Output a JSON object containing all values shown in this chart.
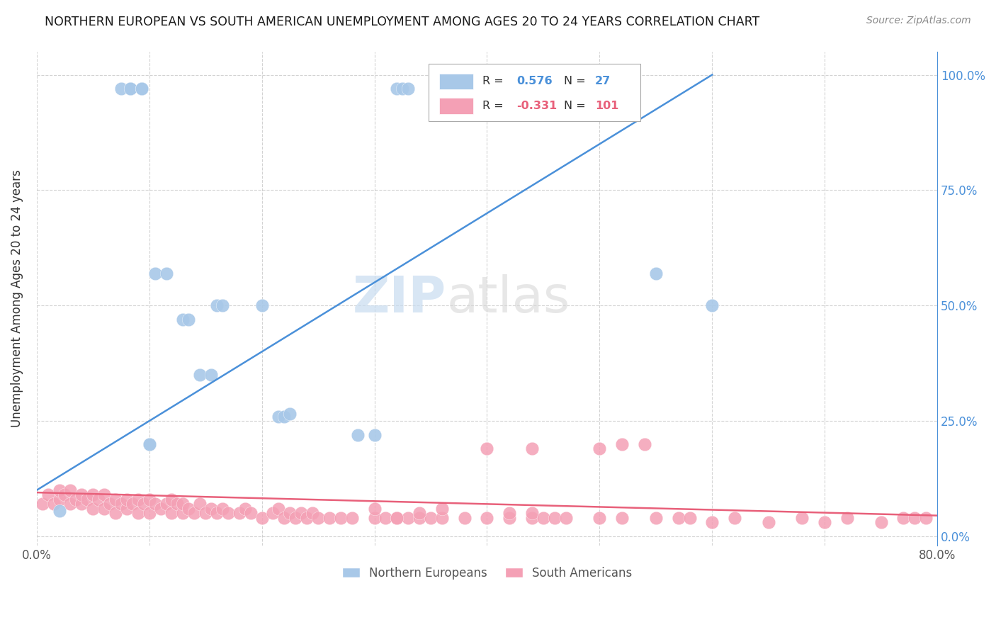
{
  "title": "NORTHERN EUROPEAN VS SOUTH AMERICAN UNEMPLOYMENT AMONG AGES 20 TO 24 YEARS CORRELATION CHART",
  "source_text": "Source: ZipAtlas.com",
  "ylabel": "Unemployment Among Ages 20 to 24 years",
  "xlim": [
    0.0,
    0.8
  ],
  "ylim": [
    -0.02,
    1.05
  ],
  "legend_r_blue": "0.576",
  "legend_n_blue": "27",
  "legend_r_pink": "-0.331",
  "legend_n_pink": "101",
  "blue_color": "#A8C8E8",
  "pink_color": "#F4A0B5",
  "blue_line_color": "#4A90D9",
  "pink_line_color": "#E8607A",
  "background_color": "#FFFFFF",
  "grid_color": "#C8C8C8",
  "blue_scatter_x": [
    0.02,
    0.075,
    0.083,
    0.083,
    0.093,
    0.093,
    0.1,
    0.1,
    0.105,
    0.115,
    0.13,
    0.135,
    0.145,
    0.155,
    0.16,
    0.165,
    0.2,
    0.215,
    0.22,
    0.225,
    0.285,
    0.3,
    0.32,
    0.325,
    0.33,
    0.55,
    0.6
  ],
  "blue_scatter_y": [
    0.055,
    0.97,
    0.97,
    0.97,
    0.97,
    0.97,
    0.2,
    0.2,
    0.57,
    0.57,
    0.47,
    0.47,
    0.35,
    0.35,
    0.5,
    0.5,
    0.5,
    0.26,
    0.26,
    0.265,
    0.22,
    0.22,
    0.97,
    0.97,
    0.97,
    0.57,
    0.5
  ],
  "blue_line_x": [
    0.0,
    0.6
  ],
  "blue_line_y": [
    0.1,
    1.0
  ],
  "pink_line_x": [
    0.0,
    0.8
  ],
  "pink_line_y": [
    0.095,
    0.045
  ],
  "pink_scatter_x": [
    0.005,
    0.01,
    0.015,
    0.02,
    0.02,
    0.025,
    0.03,
    0.03,
    0.035,
    0.04,
    0.04,
    0.045,
    0.05,
    0.05,
    0.055,
    0.06,
    0.06,
    0.065,
    0.07,
    0.07,
    0.075,
    0.08,
    0.08,
    0.085,
    0.09,
    0.09,
    0.095,
    0.1,
    0.1,
    0.105,
    0.11,
    0.115,
    0.12,
    0.12,
    0.125,
    0.13,
    0.13,
    0.135,
    0.14,
    0.145,
    0.15,
    0.155,
    0.16,
    0.165,
    0.17,
    0.18,
    0.185,
    0.19,
    0.2,
    0.21,
    0.215,
    0.22,
    0.225,
    0.23,
    0.235,
    0.24,
    0.245,
    0.25,
    0.26,
    0.27,
    0.28,
    0.3,
    0.3,
    0.31,
    0.32,
    0.33,
    0.34,
    0.35,
    0.36,
    0.38,
    0.4,
    0.42,
    0.42,
    0.44,
    0.44,
    0.45,
    0.46,
    0.47,
    0.5,
    0.52,
    0.55,
    0.57,
    0.58,
    0.6,
    0.62,
    0.65,
    0.68,
    0.7,
    0.72,
    0.75,
    0.77,
    0.78,
    0.79,
    0.4,
    0.44,
    0.52,
    0.5,
    0.54,
    0.32,
    0.34,
    0.36
  ],
  "pink_scatter_y": [
    0.07,
    0.09,
    0.07,
    0.08,
    0.1,
    0.09,
    0.07,
    0.1,
    0.08,
    0.07,
    0.09,
    0.08,
    0.06,
    0.09,
    0.08,
    0.06,
    0.09,
    0.07,
    0.05,
    0.08,
    0.07,
    0.06,
    0.08,
    0.07,
    0.05,
    0.08,
    0.07,
    0.05,
    0.08,
    0.07,
    0.06,
    0.07,
    0.05,
    0.08,
    0.07,
    0.05,
    0.07,
    0.06,
    0.05,
    0.07,
    0.05,
    0.06,
    0.05,
    0.06,
    0.05,
    0.05,
    0.06,
    0.05,
    0.04,
    0.05,
    0.06,
    0.04,
    0.05,
    0.04,
    0.05,
    0.04,
    0.05,
    0.04,
    0.04,
    0.04,
    0.04,
    0.04,
    0.06,
    0.04,
    0.04,
    0.04,
    0.04,
    0.04,
    0.04,
    0.04,
    0.04,
    0.04,
    0.05,
    0.04,
    0.05,
    0.04,
    0.04,
    0.04,
    0.04,
    0.04,
    0.04,
    0.04,
    0.04,
    0.03,
    0.04,
    0.03,
    0.04,
    0.03,
    0.04,
    0.03,
    0.04,
    0.04,
    0.04,
    0.19,
    0.19,
    0.2,
    0.19,
    0.2,
    0.04,
    0.05,
    0.06
  ]
}
